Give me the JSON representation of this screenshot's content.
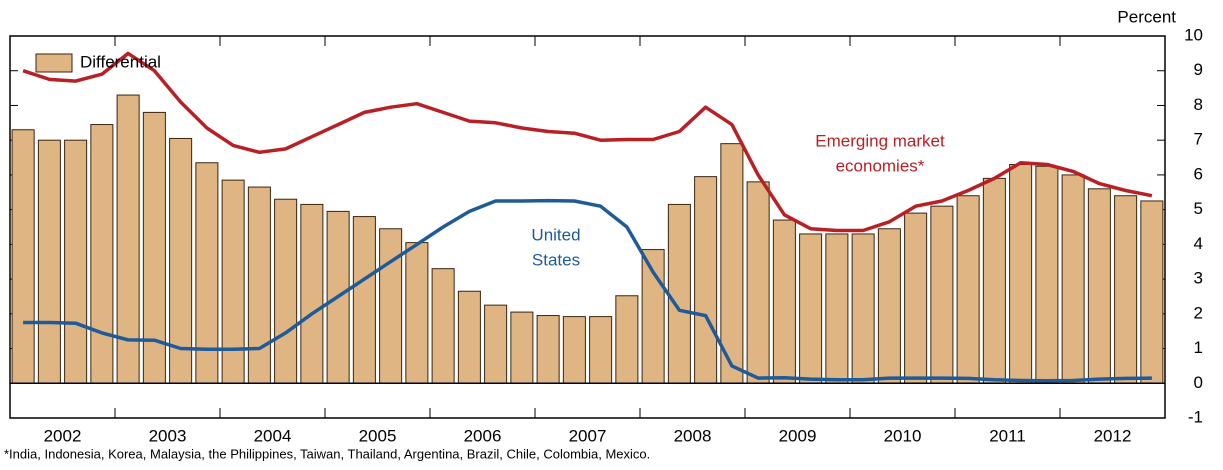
{
  "chart_data": {
    "type": "bar",
    "unit_label": "Percent",
    "footnote": "*India, Indonesia, Korea, Malaysia, the Philippines, Taiwan, Thailand, Argentina, Brazil, Chile, Colombia, Mexico.",
    "categories": [
      "2002",
      null,
      null,
      null,
      "2003",
      null,
      null,
      null,
      "2004",
      null,
      null,
      null,
      "2005",
      null,
      null,
      null,
      "2006",
      null,
      null,
      null,
      "2007",
      null,
      null,
      null,
      "2008",
      null,
      null,
      null,
      "2009",
      null,
      null,
      null,
      "2010",
      null,
      null,
      null,
      "2011",
      null,
      null,
      null,
      "2012",
      null,
      null,
      null
    ],
    "ylim": [
      -1,
      10
    ],
    "yticks": [
      -1,
      0,
      1,
      2,
      3,
      4,
      5,
      6,
      7,
      8,
      9,
      10
    ],
    "legend": "upper left",
    "series": [
      {
        "name": "Differential",
        "type": "bar",
        "color": "#dfb683",
        "values": [
          7.3,
          7.0,
          7.0,
          7.45,
          8.3,
          7.8,
          7.05,
          6.35,
          5.85,
          5.65,
          5.3,
          5.15,
          4.95,
          4.8,
          4.45,
          4.05,
          3.3,
          2.65,
          2.25,
          2.05,
          1.95,
          1.92,
          1.92,
          2.52,
          3.85,
          5.15,
          5.95,
          6.9,
          5.8,
          4.7,
          4.3,
          4.3,
          4.3,
          4.45,
          4.9,
          5.1,
          5.4,
          5.9,
          6.3,
          6.25,
          6.0,
          5.6,
          5.4,
          5.25
        ]
      },
      {
        "name": "Emerging market economies*",
        "label_lines": [
          "Emerging market",
          "economies*"
        ],
        "type": "line",
        "color": "#b82025",
        "values": [
          9.0,
          8.75,
          8.7,
          8.9,
          9.5,
          9.0,
          8.1,
          7.35,
          6.85,
          6.65,
          6.75,
          7.1,
          7.45,
          7.8,
          7.95,
          8.05,
          7.8,
          7.55,
          7.5,
          7.35,
          7.25,
          7.2,
          7.0,
          7.02,
          7.02,
          7.25,
          7.95,
          7.45,
          6.0,
          4.85,
          4.45,
          4.4,
          4.4,
          4.65,
          5.1,
          5.25,
          5.55,
          5.9,
          6.35,
          6.3,
          6.1,
          5.75,
          5.55,
          5.4
        ]
      },
      {
        "name": "United States",
        "label_lines": [
          "United",
          "States"
        ],
        "type": "line",
        "color": "#1f5a99",
        "values": [
          1.75,
          1.75,
          1.73,
          1.45,
          1.25,
          1.24,
          1.0,
          0.98,
          0.98,
          1.0,
          1.45,
          2.0,
          2.5,
          3.0,
          3.5,
          4.0,
          4.5,
          4.95,
          5.25,
          5.25,
          5.26,
          5.25,
          5.1,
          4.5,
          3.2,
          2.1,
          1.95,
          0.5,
          0.15,
          0.16,
          0.12,
          0.1,
          0.1,
          0.15,
          0.15,
          0.15,
          0.14,
          0.1,
          0.08,
          0.07,
          0.08,
          0.12,
          0.14,
          0.15
        ]
      }
    ]
  }
}
